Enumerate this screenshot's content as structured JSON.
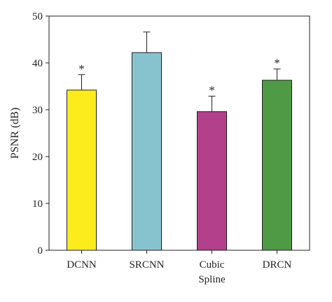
{
  "chart_data": {
    "type": "bar",
    "title": "",
    "xlabel": "",
    "ylabel": "PSNR (dB)",
    "ylim": [
      0,
      50
    ],
    "yticks": [
      "0",
      "10",
      "20",
      "30",
      "40",
      "50"
    ],
    "categories": [
      {
        "lines": [
          "DCNN"
        ]
      },
      {
        "lines": [
          "SRCNN"
        ]
      },
      {
        "lines": [
          "Cubic",
          "Spline"
        ]
      },
      {
        "lines": [
          "DRCN"
        ]
      }
    ],
    "values": [
      34.2,
      42.2,
      29.6,
      36.3
    ],
    "errors": [
      3.3,
      4.4,
      3.3,
      2.4
    ],
    "significance": [
      "*",
      "",
      "*",
      "*"
    ],
    "colors": [
      "#fdec1d",
      "#87c3cf",
      "#b2408b",
      "#4f9a45"
    ],
    "grid": false,
    "legend": "none"
  }
}
